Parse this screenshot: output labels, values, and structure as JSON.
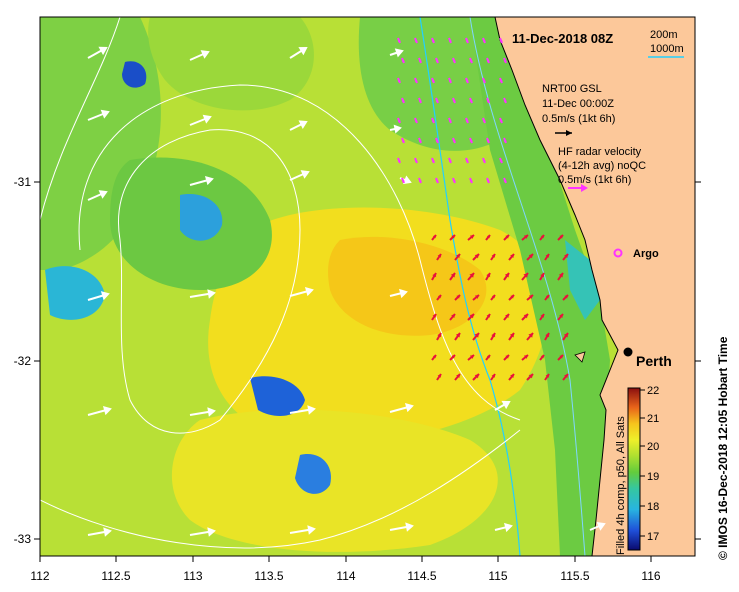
{
  "map": {
    "title": "11-Dec-2018 08Z",
    "credit": "© IMOS 16-Dec-2018 12:05 Hobart Time",
    "lon_ticks": [
      "112",
      "112.5",
      "113",
      "113.5",
      "114",
      "114.5",
      "115",
      "115.5",
      "116"
    ],
    "lat_ticks": [
      "-31",
      "-32",
      "-33"
    ],
    "lon_range": [
      112,
      116.3
    ],
    "lat_range": [
      -30.1,
      -33.1
    ],
    "contour_legend": {
      "line1": "200m",
      "line2": "1000m",
      "color_200m": "#7fd6ff",
      "color_1000m": "#22d0ff"
    },
    "gsl_legend": {
      "line1": "NRT00 GSL",
      "line2": "11-Dec 00:00Z",
      "line3": "0.5m/s (1kt 6h)",
      "arrow_color": "#000000"
    },
    "radar_legend": {
      "line1": "HF radar velocity",
      "line2": "(4-12h avg) noQC",
      "line3": "0.5m/s (1kt 6h)",
      "arrow_color": "#ff33ff"
    },
    "argo": {
      "label": "Argo",
      "color": "#ff33ff"
    },
    "city": {
      "label": "Perth"
    },
    "land_color": "#fcc89a",
    "sea_colors": {
      "cold": "#1565e6",
      "cool": "#2fc3b8",
      "mid": "#7dd042",
      "warm": "#d8e82e",
      "hot": "#f6d81c"
    }
  },
  "colorbar": {
    "label": "Filled 4h comp, p50, All Sats",
    "ticks": [
      "17",
      "18",
      "19",
      "20",
      "21",
      "22"
    ],
    "range": [
      16.6,
      22
    ]
  }
}
